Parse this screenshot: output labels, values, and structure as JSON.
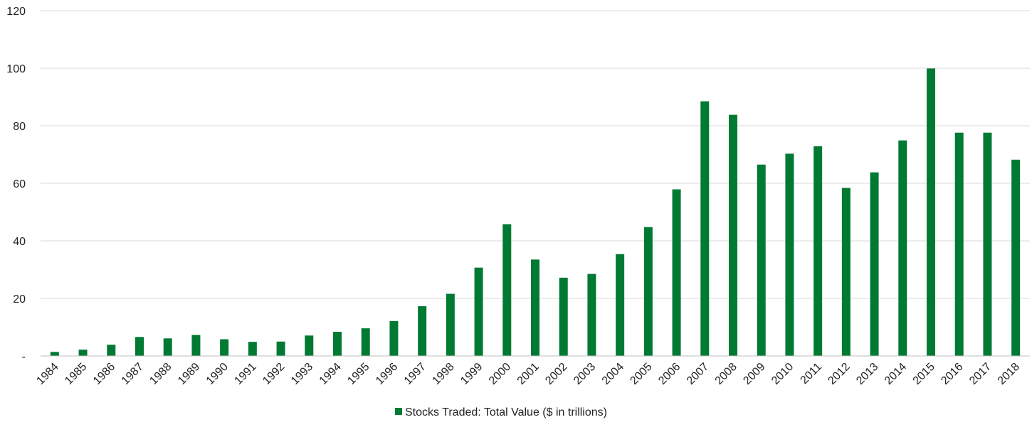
{
  "chart_data": {
    "type": "bar",
    "categories": [
      "1984",
      "1985",
      "1986",
      "1987",
      "1988",
      "1989",
      "1990",
      "1991",
      "1992",
      "1993",
      "1994",
      "1995",
      "1996",
      "1997",
      "1998",
      "1999",
      "2000",
      "2001",
      "2002",
      "2003",
      "2004",
      "2005",
      "2006",
      "2007",
      "2008",
      "2009",
      "2010",
      "2011",
      "2012",
      "2013",
      "2014",
      "2015",
      "2016",
      "2017",
      "2018"
    ],
    "series": [
      {
        "name": "Stocks Traded: Total Value ($ in trillions)",
        "values": [
          1.4,
          2.2,
          3.9,
          6.6,
          6.1,
          7.3,
          5.8,
          4.9,
          5.0,
          7.1,
          8.4,
          9.6,
          12.1,
          17.3,
          21.6,
          30.7,
          45.8,
          33.5,
          27.2,
          28.5,
          35.4,
          44.8,
          57.9,
          88.5,
          83.8,
          66.5,
          70.3,
          72.9,
          58.4,
          63.8,
          74.9,
          99.9,
          77.6,
          77.6,
          68.2
        ]
      }
    ],
    "yticks": [
      "-",
      "20",
      "40",
      "60",
      "80",
      "100",
      "120"
    ],
    "ylim": [
      0,
      120
    ],
    "grid": true,
    "legend_position": "bottom-center",
    "colors": {
      "bar": "#007a33",
      "grid": "#d9d9d9",
      "axis": "#bfbfbf"
    }
  }
}
